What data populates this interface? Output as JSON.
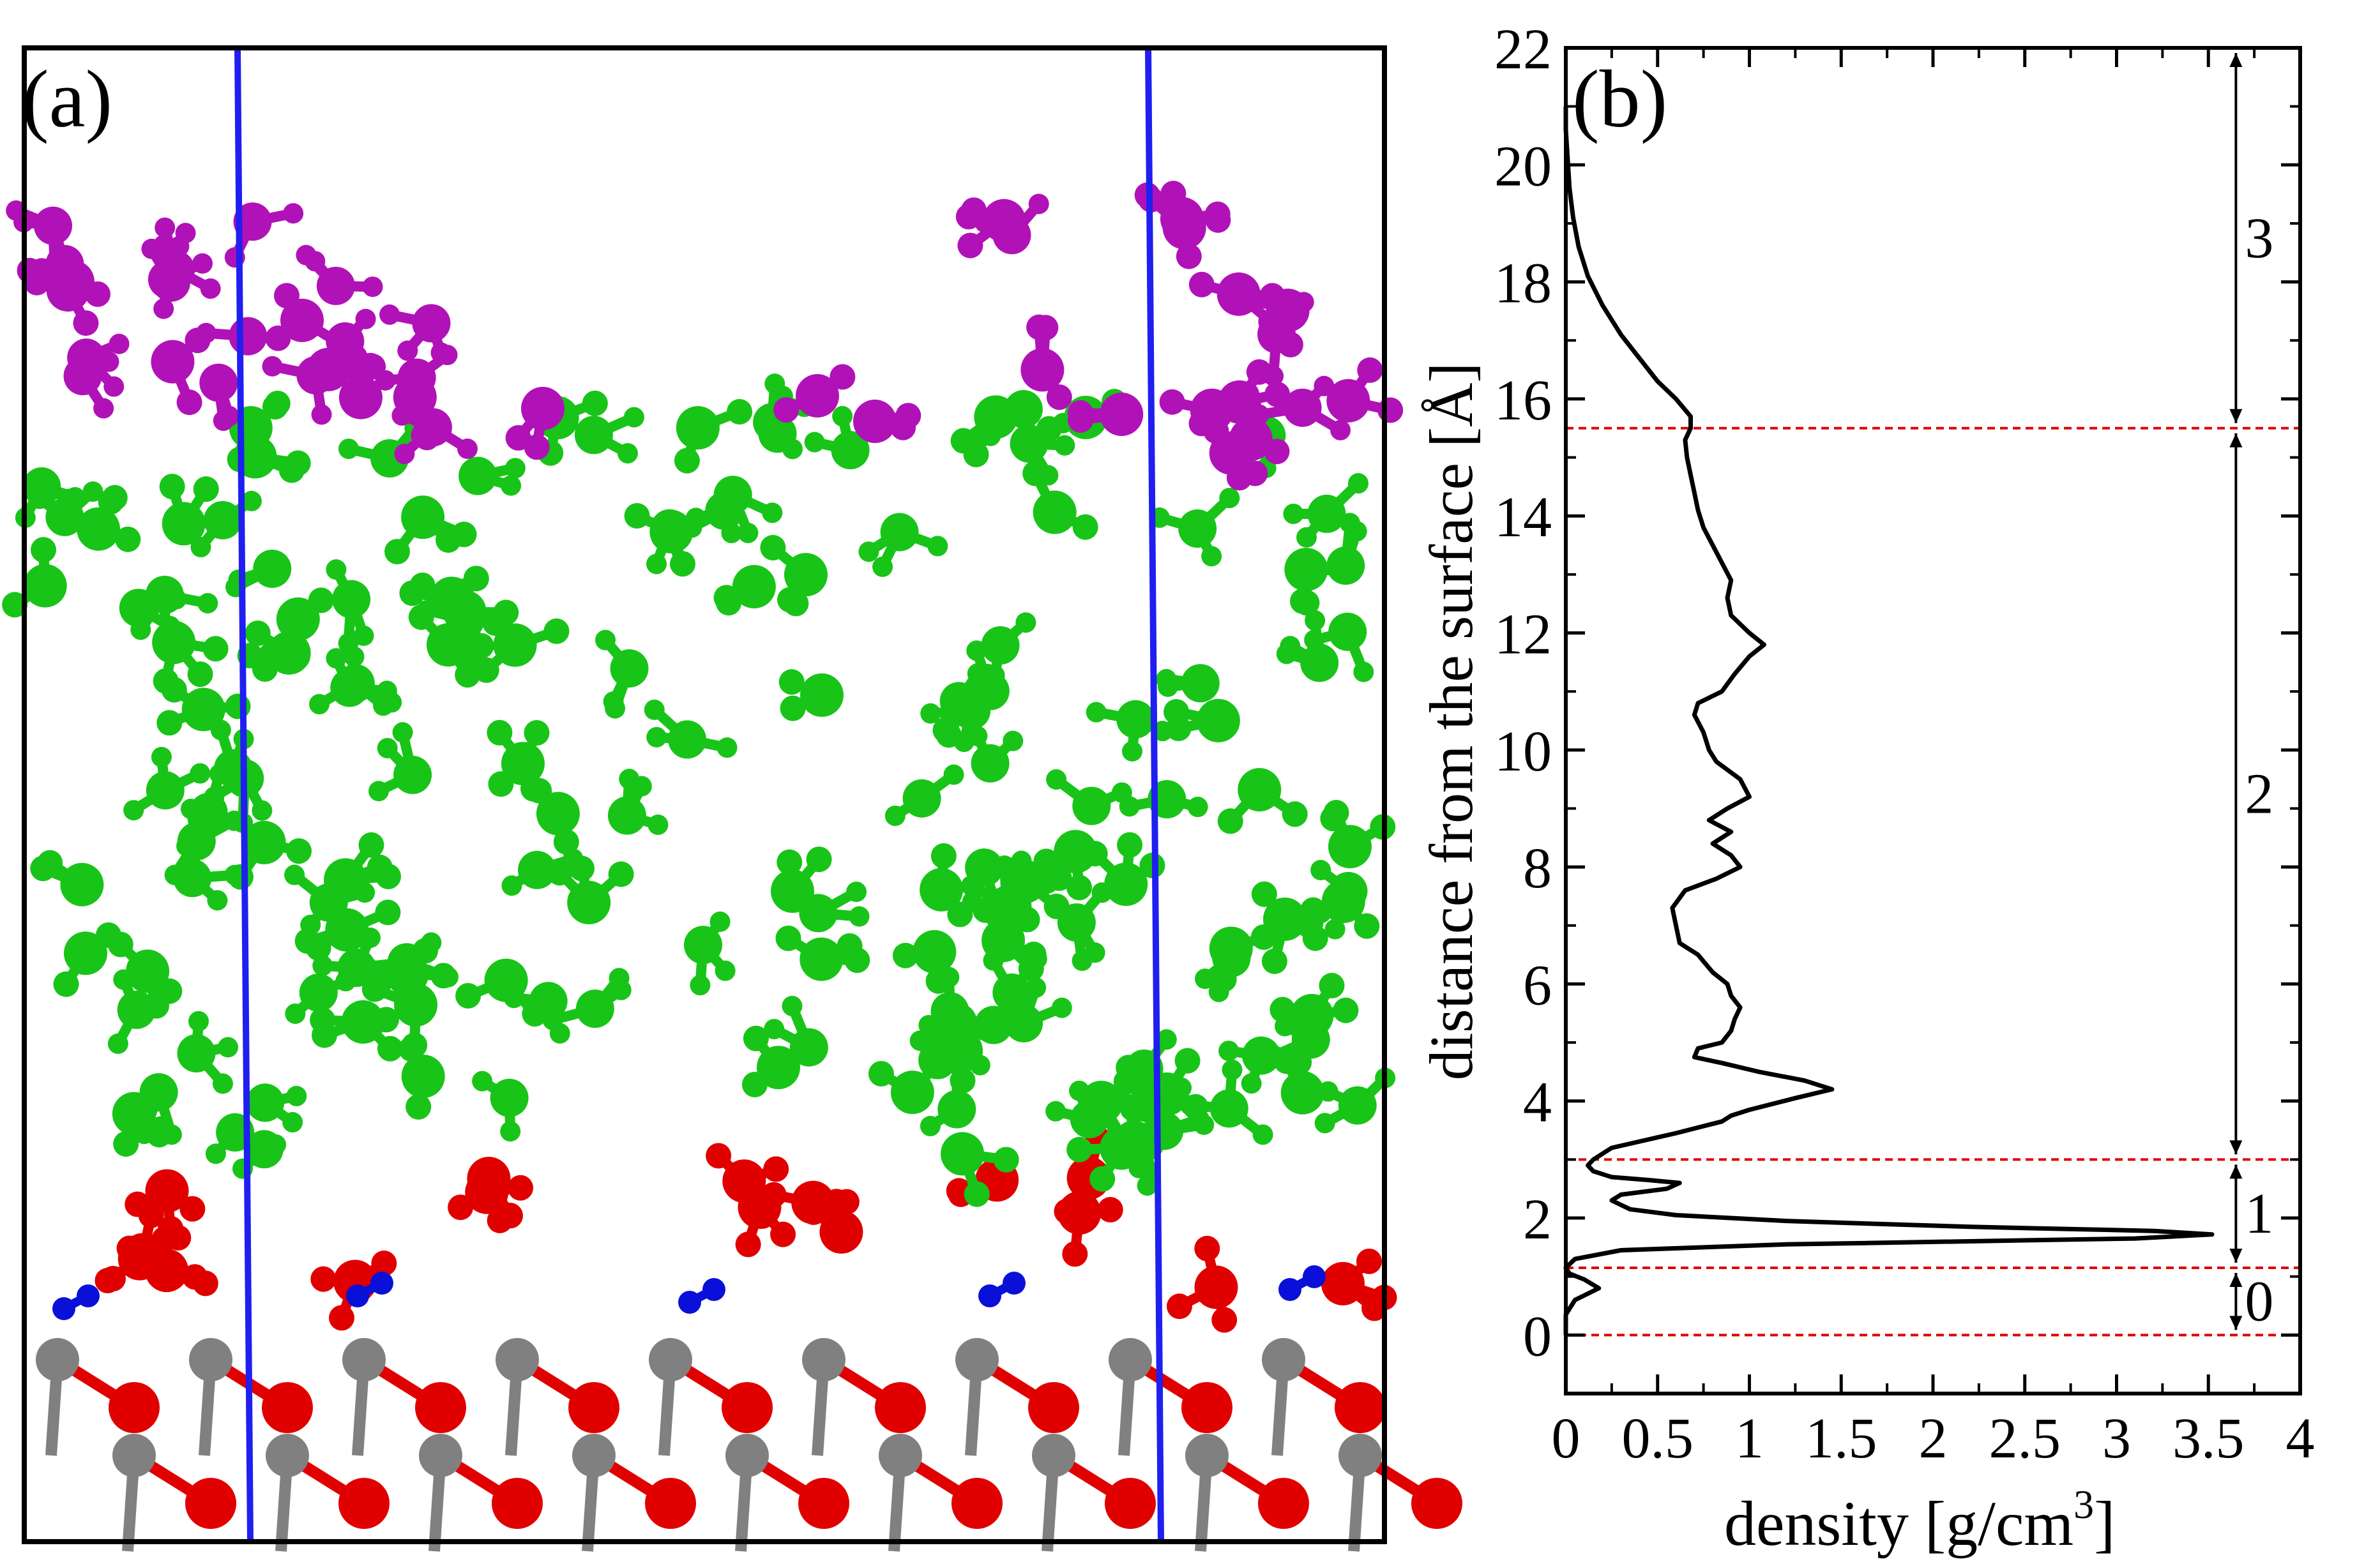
{
  "panel_a": {
    "label": "(a)",
    "colors": {
      "frame": "#000000",
      "cell_line": "#1f1ff0",
      "purple": "#b012b8",
      "green": "#18c418",
      "red": "#e00000",
      "blue": "#0a10d8",
      "gray": "#808080"
    }
  },
  "chart_data": {
    "type": "line",
    "panel_label": "(b)",
    "xlabel": "density [g/cm",
    "xlabel_superscript": "3",
    "xlabel_close": "]",
    "ylabel": "distance from the surface [Å]",
    "xlim": [
      0,
      4
    ],
    "ylim": [
      -1,
      22
    ],
    "x_ticks": [
      "0",
      "0.5",
      "1",
      "1.5",
      "2",
      "2.5",
      "3",
      "3.5",
      "4"
    ],
    "x_tick_values": [
      0,
      0.5,
      1,
      1.5,
      2,
      2.5,
      3,
      3.5,
      4
    ],
    "y_ticks": [
      "0",
      "2",
      "4",
      "6",
      "8",
      "10",
      "12",
      "14",
      "16",
      "18",
      "20",
      "22"
    ],
    "y_tick_values": [
      0,
      2,
      4,
      6,
      8,
      10,
      12,
      14,
      16,
      18,
      20,
      22
    ],
    "region_boundaries": [
      0,
      1.15,
      3.0,
      15.5
    ],
    "regions": [
      {
        "label": "0",
        "from": 0,
        "to": 1.15
      },
      {
        "label": "1",
        "from": 1.15,
        "to": 3.0
      },
      {
        "label": "2",
        "from": 3.0,
        "to": 15.5
      },
      {
        "label": "3",
        "from": 15.5,
        "to": 22
      }
    ],
    "colors": {
      "curve": "#000000",
      "boundary": "#e00000",
      "arrow": "#000000"
    },
    "series": [
      {
        "name": "density profile",
        "points": [
          [
            0.0,
            0.0
          ],
          [
            0.0,
            0.35
          ],
          [
            0.05,
            0.6
          ],
          [
            0.18,
            0.8
          ],
          [
            0.1,
            0.95
          ],
          [
            0.02,
            1.05
          ],
          [
            0.0,
            1.15
          ],
          [
            0.05,
            1.3
          ],
          [
            0.3,
            1.45
          ],
          [
            1.2,
            1.55
          ],
          [
            3.1,
            1.65
          ],
          [
            3.52,
            1.72
          ],
          [
            3.2,
            1.78
          ],
          [
            2.2,
            1.85
          ],
          [
            1.2,
            1.95
          ],
          [
            0.6,
            2.05
          ],
          [
            0.35,
            2.15
          ],
          [
            0.25,
            2.3
          ],
          [
            0.3,
            2.4
          ],
          [
            0.55,
            2.5
          ],
          [
            0.62,
            2.6
          ],
          [
            0.45,
            2.65
          ],
          [
            0.25,
            2.7
          ],
          [
            0.15,
            2.8
          ],
          [
            0.12,
            2.9
          ],
          [
            0.15,
            3.0
          ],
          [
            0.25,
            3.2
          ],
          [
            0.6,
            3.45
          ],
          [
            0.85,
            3.65
          ],
          [
            0.9,
            3.75
          ],
          [
            1.0,
            3.85
          ],
          [
            1.25,
            4.05
          ],
          [
            1.45,
            4.2
          ],
          [
            1.3,
            4.35
          ],
          [
            1.05,
            4.5
          ],
          [
            0.85,
            4.65
          ],
          [
            0.7,
            4.75
          ],
          [
            0.72,
            4.9
          ],
          [
            0.85,
            5.0
          ],
          [
            0.9,
            5.2
          ],
          [
            0.92,
            5.4
          ],
          [
            0.95,
            5.6
          ],
          [
            0.9,
            5.8
          ],
          [
            0.88,
            6.0
          ],
          [
            0.8,
            6.2
          ],
          [
            0.72,
            6.5
          ],
          [
            0.62,
            6.7
          ],
          [
            0.6,
            7.0
          ],
          [
            0.58,
            7.3
          ],
          [
            0.65,
            7.6
          ],
          [
            0.82,
            7.8
          ],
          [
            0.95,
            8.0
          ],
          [
            0.9,
            8.2
          ],
          [
            0.8,
            8.4
          ],
          [
            0.9,
            8.6
          ],
          [
            0.78,
            8.8
          ],
          [
            0.88,
            9.0
          ],
          [
            1.0,
            9.2
          ],
          [
            0.95,
            9.5
          ],
          [
            0.82,
            9.8
          ],
          [
            0.78,
            10.0
          ],
          [
            0.75,
            10.3
          ],
          [
            0.7,
            10.6
          ],
          [
            0.72,
            10.8
          ],
          [
            0.85,
            11.0
          ],
          [
            0.92,
            11.3
          ],
          [
            1.0,
            11.6
          ],
          [
            1.08,
            11.8
          ],
          [
            1.0,
            12.0
          ],
          [
            0.9,
            12.3
          ],
          [
            0.88,
            12.6
          ],
          [
            0.9,
            12.9
          ],
          [
            0.85,
            13.2
          ],
          [
            0.8,
            13.5
          ],
          [
            0.75,
            13.8
          ],
          [
            0.72,
            14.1
          ],
          [
            0.7,
            14.4
          ],
          [
            0.68,
            14.7
          ],
          [
            0.66,
            15.0
          ],
          [
            0.65,
            15.3
          ],
          [
            0.68,
            15.5
          ],
          [
            0.68,
            15.7
          ],
          [
            0.6,
            16.0
          ],
          [
            0.5,
            16.3
          ],
          [
            0.4,
            16.7
          ],
          [
            0.3,
            17.1
          ],
          [
            0.2,
            17.6
          ],
          [
            0.12,
            18.1
          ],
          [
            0.07,
            18.6
          ],
          [
            0.04,
            19.1
          ],
          [
            0.02,
            19.6
          ],
          [
            0.01,
            20.1
          ],
          [
            0.0,
            20.6
          ],
          [
            0.0,
            21.0
          ]
        ]
      }
    ]
  }
}
